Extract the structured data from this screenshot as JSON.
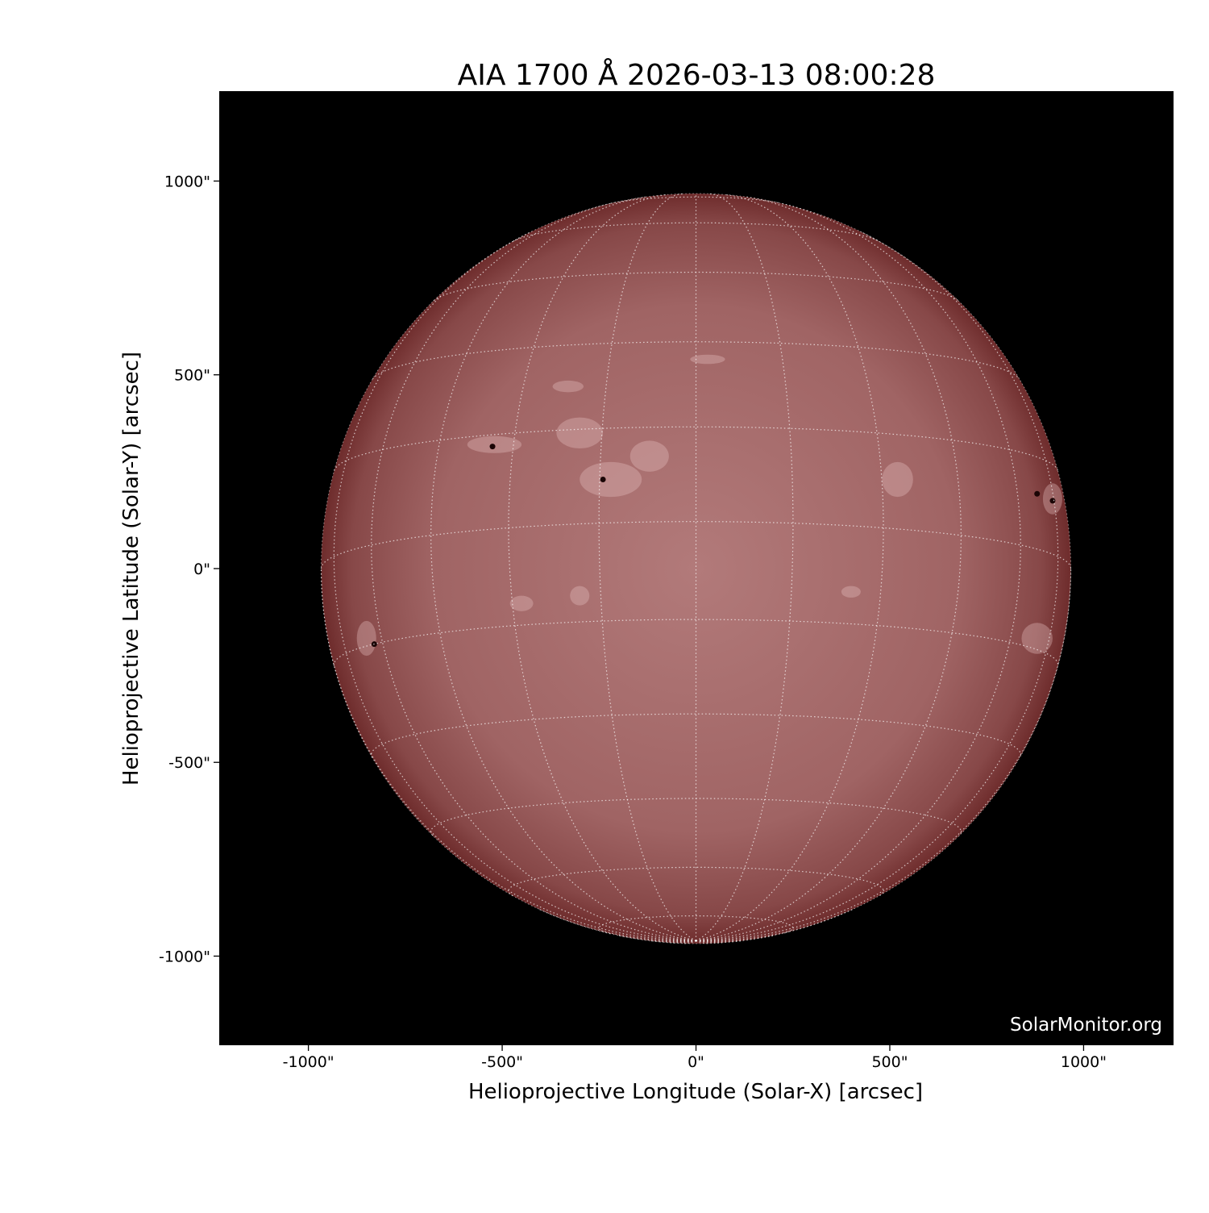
{
  "chart_data": {
    "type": "heatmap",
    "title": "AIA 1700 Å 2026-03-13 08:00:28",
    "xlabel": "Helioprojective Longitude (Solar-X) [arcsec]",
    "ylabel": "Helioprojective Latitude (Solar-Y) [arcsec]",
    "xlim": [
      -1230,
      1232
    ],
    "ylim": [
      -1230,
      1232
    ],
    "xticks": [
      -1000,
      -500,
      0,
      500,
      1000
    ],
    "yticks": [
      -1000,
      -500,
      0,
      500,
      1000
    ],
    "xtick_labels": [
      "-1000\"",
      "-500\"",
      "0\"",
      "500\"",
      "1000\""
    ],
    "ytick_labels": [
      "-1000\"",
      "-500\"",
      "0\"",
      "500\"",
      "1000\""
    ],
    "solar_radius_arcsec": 967,
    "heliographic_grid_spacing_deg": 15,
    "grid": true,
    "colormap": "sdoaia1700",
    "colors": {
      "background": "#000000",
      "disk_center": "#b27a7a",
      "disk_limb": "#6e2c2c",
      "grid": "#ffffff"
    },
    "watermark": "SolarMonitor.org"
  }
}
